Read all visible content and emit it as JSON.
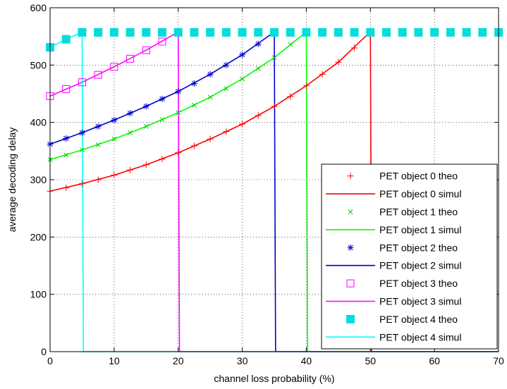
{
  "chart_data": {
    "type": "line",
    "title": "",
    "xlabel": "channel loss probability (%)",
    "ylabel": "average decoding delay",
    "xlim": [
      0,
      70
    ],
    "ylim": [
      0,
      600
    ],
    "xticks": [
      0,
      10,
      20,
      30,
      40,
      50,
      60,
      70
    ],
    "yticks": [
      0,
      100,
      200,
      300,
      400,
      500,
      600
    ],
    "grid": "dotted",
    "legend_position": "bottom-right",
    "series": [
      {
        "name": "PET object 0 theo",
        "kind": "markers",
        "marker": "plus",
        "color": "#ff0000",
        "x": [
          0,
          2.5,
          5,
          7.5,
          10,
          12.5,
          15,
          17.5,
          20,
          22.5,
          25,
          27.5,
          30,
          32.5,
          35,
          37.5,
          40,
          42.5,
          45,
          47.5
        ],
        "y": [
          280,
          286,
          293,
          300,
          308,
          317,
          326,
          336,
          347,
          359,
          371,
          384,
          397,
          412,
          428,
          445,
          464,
          484,
          505,
          530
        ]
      },
      {
        "name": "PET object 0 simul",
        "kind": "line",
        "color": "#ff0000",
        "x": [
          0,
          5,
          10,
          15,
          20,
          25,
          30,
          35,
          40,
          45,
          49.9,
          50,
          50.2,
          70
        ],
        "y": [
          280,
          293,
          308,
          326,
          347,
          371,
          397,
          428,
          464,
          505,
          557,
          557,
          0,
          0
        ]
      },
      {
        "name": "PET object 1 theo",
        "kind": "markers",
        "marker": "x",
        "color": "#00cc00",
        "x": [
          0,
          2.5,
          5,
          7.5,
          10,
          12.5,
          15,
          17.5,
          20,
          22.5,
          25,
          27.5,
          30,
          32.5,
          35,
          37.5
        ],
        "y": [
          335,
          343,
          352,
          361,
          371,
          382,
          393,
          405,
          417,
          430,
          444,
          459,
          476,
          494,
          513,
          536
        ]
      },
      {
        "name": "PET object 1 simul",
        "kind": "line",
        "color": "#00ff00",
        "x": [
          0,
          5,
          10,
          15,
          20,
          25,
          30,
          35,
          39.9,
          40,
          40.2,
          70
        ],
        "y": [
          335,
          352,
          371,
          393,
          417,
          444,
          476,
          513,
          557,
          557,
          0,
          0
        ]
      },
      {
        "name": "PET object 2 theo",
        "kind": "markers",
        "marker": "star",
        "color": "#0000cc",
        "x": [
          0,
          2.5,
          5,
          7.5,
          10,
          12.5,
          15,
          17.5,
          20,
          22.5,
          25,
          27.5,
          30,
          32.5
        ],
        "y": [
          362,
          372,
          382,
          393,
          404,
          416,
          428,
          441,
          454,
          468,
          484,
          500,
          518,
          537
        ]
      },
      {
        "name": "PET object 2 simul",
        "kind": "line",
        "color": "#0000cc",
        "x": [
          0,
          5,
          10,
          15,
          20,
          25,
          30,
          34.9,
          35,
          35.2,
          70
        ],
        "y": [
          362,
          382,
          404,
          428,
          454,
          484,
          518,
          557,
          557,
          0,
          0
        ]
      },
      {
        "name": "PET object 3 theo",
        "kind": "markers",
        "marker": "square-open",
        "color": "#ff00ff",
        "x": [
          0,
          2.5,
          5,
          7.5,
          10,
          12.5,
          15,
          17.5
        ],
        "y": [
          446,
          458,
          470,
          483,
          497,
          511,
          526,
          541
        ]
      },
      {
        "name": "PET object 3 simul",
        "kind": "line",
        "color": "#ff00ff",
        "x": [
          0,
          5,
          10,
          15,
          19.9,
          20,
          20.2,
          70
        ],
        "y": [
          446,
          470,
          497,
          526,
          557,
          557,
          0,
          0
        ]
      },
      {
        "name": "PET object 4 theo",
        "kind": "markers",
        "marker": "square-filled",
        "color": "#00dddd",
        "x": [
          0,
          2.5,
          5,
          7.5,
          10,
          12.5,
          15,
          17.5,
          20,
          22.5,
          25,
          27.5,
          30,
          32.5,
          35,
          37.5,
          40,
          42.5,
          45,
          47.5,
          50,
          52.5,
          55,
          57.5,
          60,
          62.5,
          65,
          67.5,
          70
        ],
        "y": [
          531,
          545,
          557,
          557,
          557,
          557,
          557,
          557,
          557,
          557,
          557,
          557,
          557,
          557,
          557,
          557,
          557,
          557,
          557,
          557,
          557,
          557,
          557,
          557,
          557,
          557,
          557,
          557,
          557
        ]
      },
      {
        "name": "PET object 4 simul",
        "kind": "line",
        "color": "#00ffff",
        "x": [
          0,
          2.5,
          4.9,
          5,
          5.2,
          70
        ],
        "y": [
          531,
          545,
          557,
          557,
          0,
          0
        ]
      }
    ]
  }
}
